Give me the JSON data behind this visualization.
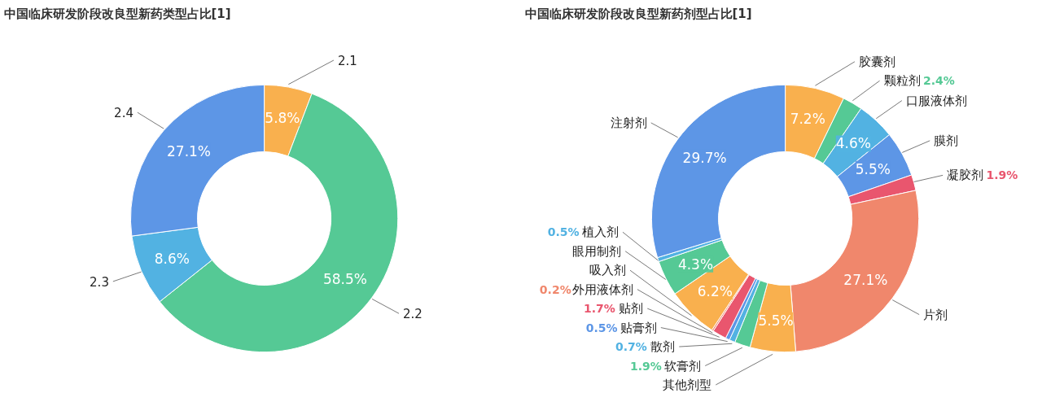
{
  "chart_data": [
    {
      "type": "donut",
      "title": "中国临床研发阶段改良型新药类型占比[1]",
      "categories": [
        "2.1",
        "2.2",
        "2.3",
        "2.4"
      ],
      "values": [
        5.8,
        58.5,
        8.6,
        27.1
      ],
      "value_labels": [
        "5.8%",
        "58.5%",
        "8.6%",
        "27.1%"
      ],
      "colors": [
        "#f9b04e",
        "#55c995",
        "#52b2e2",
        "#5d96e6"
      ]
    },
    {
      "type": "donut",
      "title": "中国临床研发阶段改良型新药剂型占比[1]",
      "categories": [
        "胶囊剂",
        "颗粒剂",
        "口服液体剂",
        "膜剂",
        "凝胶剂",
        "片剂",
        "其他剂型",
        "软膏剂",
        "散剂",
        "贴膏剂",
        "贴剂",
        "外用液体剂",
        "吸入剂",
        "眼用制剂",
        "植入剂",
        "注射剂"
      ],
      "values": [
        7.2,
        2.4,
        4.6,
        5.5,
        1.9,
        27.1,
        5.5,
        1.9,
        0.7,
        0.5,
        1.7,
        0.2,
        6.2,
        4.3,
        0.5,
        29.7
      ],
      "value_labels": [
        "7.2%",
        "2.4%",
        "4.6%",
        "5.5%",
        "1.9%",
        "27.1%",
        "5.5%",
        "1.9%",
        "0.7%",
        "0.5%",
        "1.7%",
        "0.2%",
        "6.2%",
        "4.3%",
        "0.5%",
        "29.7%"
      ],
      "colors": [
        "#f9b04e",
        "#55c995",
        "#52b2e2",
        "#5d96e6",
        "#e9566e",
        "#f0876c",
        "#f9b04e",
        "#55c995",
        "#52b2e2",
        "#5d96e6",
        "#e9566e",
        "#f0876c",
        "#f9b04e",
        "#55c995",
        "#52b2e2",
        "#5d96e6"
      ]
    }
  ]
}
